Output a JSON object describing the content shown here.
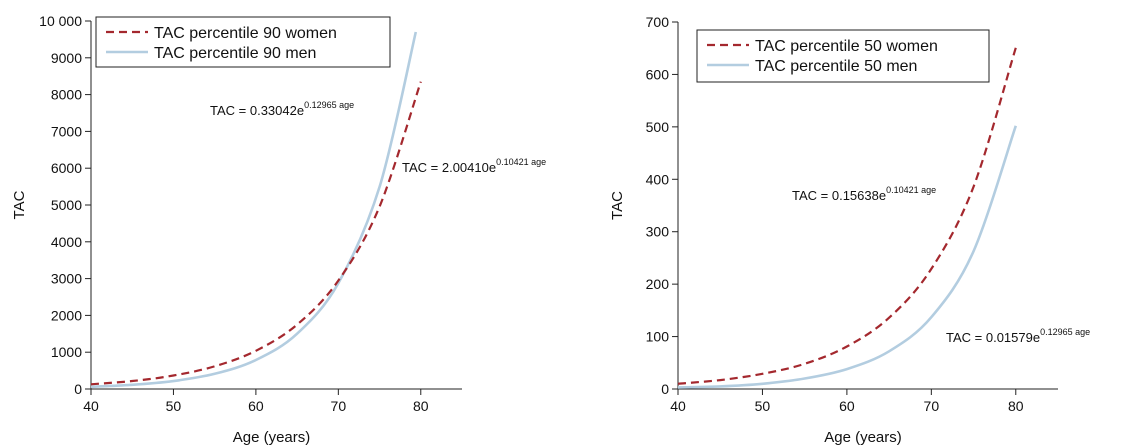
{
  "chart_data": [
    {
      "type": "line",
      "xlabel": "Age (years)",
      "ylabel": "TAC",
      "xlim": [
        40,
        85
      ],
      "ylim": [
        0,
        10000
      ],
      "xticks": [
        40,
        50,
        60,
        70,
        80
      ],
      "yticks": [
        {
          "value": 0,
          "label": "0"
        },
        {
          "value": 1000,
          "label": "1000"
        },
        {
          "value": 2000,
          "label": "2000"
        },
        {
          "value": 3000,
          "label": "3000"
        },
        {
          "value": 4000,
          "label": "4000"
        },
        {
          "value": 5000,
          "label": "5000"
        },
        {
          "value": 6000,
          "label": "6000"
        },
        {
          "value": 7000,
          "label": "7000"
        },
        {
          "value": 8000,
          "label": "8000"
        },
        {
          "value": 9000,
          "label": "9000"
        },
        {
          "value": 10000,
          "label": "10 000"
        }
      ],
      "legend": "top-left",
      "series": [
        {
          "name": "TAC percentile 90 women",
          "style": "dashed",
          "color": "#a4282e",
          "x": [
            40,
            45,
            50,
            55,
            60,
            65,
            70,
            75,
            80
          ],
          "values": [
            129,
            217,
            366,
            617,
            1039,
            1749,
            2945,
            4960,
            8350
          ],
          "equation": {
            "base": "TAC = 2.00410e",
            "exponent": "0.10421 age"
          }
        },
        {
          "name": "TAC percentile 90 men",
          "style": "solid",
          "color": "#b3cde0",
          "x": [
            40,
            45,
            50,
            55,
            60,
            65,
            70,
            75,
            79.4
          ],
          "values": [
            59,
            113,
            216,
            412,
            787,
            1504,
            2875,
            5495,
            9700
          ],
          "equation": {
            "base": "TAC = 0.33042e",
            "exponent": "0.12965 age"
          }
        }
      ]
    },
    {
      "type": "line",
      "xlabel": "Age (years)",
      "ylabel": "TAC",
      "xlim": [
        40,
        85
      ],
      "ylim": [
        0,
        700
      ],
      "xticks": [
        40,
        50,
        60,
        70,
        80
      ],
      "yticks": [
        {
          "value": 0,
          "label": "0"
        },
        {
          "value": 100,
          "label": "100"
        },
        {
          "value": 200,
          "label": "200"
        },
        {
          "value": 300,
          "label": "300"
        },
        {
          "value": 400,
          "label": "400"
        },
        {
          "value": 500,
          "label": "500"
        },
        {
          "value": 600,
          "label": "600"
        },
        {
          "value": 700,
          "label": "700"
        }
      ],
      "legend": "top-left",
      "series": [
        {
          "name": "TAC percentile 50 women",
          "style": "dashed",
          "color": "#a4282e",
          "x": [
            40,
            45,
            50,
            55,
            60,
            65,
            70,
            75,
            80
          ],
          "values": [
            10,
            17,
            29,
            48,
            81,
            136,
            229,
            386,
            651
          ],
          "equation": {
            "base": "TAC = 0.15638e",
            "exponent": "0.10421 age"
          }
        },
        {
          "name": "TAC percentile 50 men",
          "style": "solid",
          "color": "#b3cde0",
          "x": [
            40,
            45,
            50,
            55,
            60,
            65,
            70,
            75,
            80
          ],
          "values": [
            3,
            5,
            10,
            20,
            38,
            72,
            137,
            263,
            502
          ],
          "equation": {
            "base": "TAC = 0.01579e",
            "exponent": "0.12965 age"
          }
        }
      ]
    }
  ]
}
